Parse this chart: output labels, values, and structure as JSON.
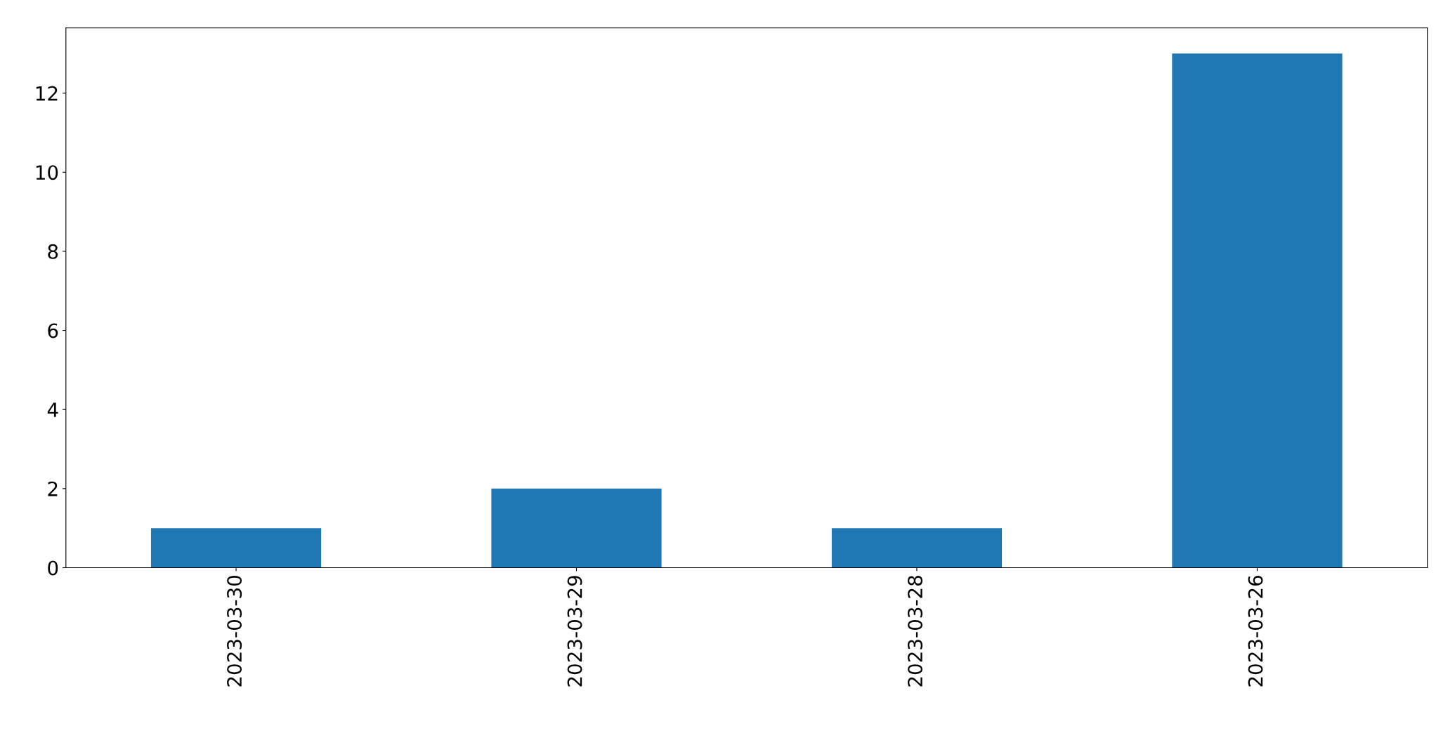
{
  "chart_data": {
    "type": "bar",
    "categories": [
      "2023-03-30",
      "2023-03-29",
      "2023-03-28",
      "2023-03-26"
    ],
    "values": [
      1,
      2,
      1,
      13
    ],
    "color": "#1f77b4",
    "ylim": [
      0,
      13.65
    ],
    "yticks": [
      0,
      2,
      4,
      6,
      8,
      10,
      12
    ],
    "grid": false,
    "legend": false
  }
}
